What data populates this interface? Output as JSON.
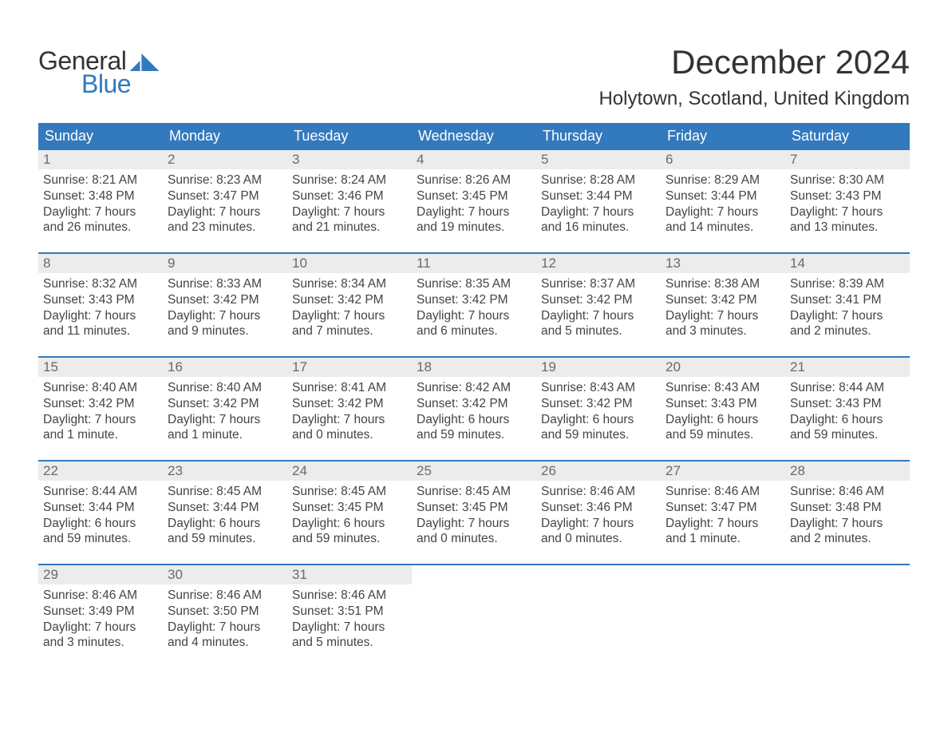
{
  "logo": {
    "text1": "General",
    "text2": "Blue",
    "color1": "#333333",
    "color2": "#3379bd",
    "flag_color": "#3379bd"
  },
  "title": "December 2024",
  "location": "Holytown, Scotland, United Kingdom",
  "styling": {
    "header_bg": "#3379bd",
    "header_text": "#ffffff",
    "daynum_bg": "#ececec",
    "daynum_color": "#6a6a6a",
    "body_text": "#444444",
    "week_border": "#3379bd",
    "page_bg": "#ffffff",
    "title_fontsize": 42,
    "location_fontsize": 24,
    "dow_fontsize": 18,
    "body_fontsize": 15.5
  },
  "days_of_week": [
    "Sunday",
    "Monday",
    "Tuesday",
    "Wednesday",
    "Thursday",
    "Friday",
    "Saturday"
  ],
  "weeks": [
    [
      {
        "n": "1",
        "sunrise": "Sunrise: 8:21 AM",
        "sunset": "Sunset: 3:48 PM",
        "d1": "Daylight: 7 hours",
        "d2": "and 26 minutes."
      },
      {
        "n": "2",
        "sunrise": "Sunrise: 8:23 AM",
        "sunset": "Sunset: 3:47 PM",
        "d1": "Daylight: 7 hours",
        "d2": "and 23 minutes."
      },
      {
        "n": "3",
        "sunrise": "Sunrise: 8:24 AM",
        "sunset": "Sunset: 3:46 PM",
        "d1": "Daylight: 7 hours",
        "d2": "and 21 minutes."
      },
      {
        "n": "4",
        "sunrise": "Sunrise: 8:26 AM",
        "sunset": "Sunset: 3:45 PM",
        "d1": "Daylight: 7 hours",
        "d2": "and 19 minutes."
      },
      {
        "n": "5",
        "sunrise": "Sunrise: 8:28 AM",
        "sunset": "Sunset: 3:44 PM",
        "d1": "Daylight: 7 hours",
        "d2": "and 16 minutes."
      },
      {
        "n": "6",
        "sunrise": "Sunrise: 8:29 AM",
        "sunset": "Sunset: 3:44 PM",
        "d1": "Daylight: 7 hours",
        "d2": "and 14 minutes."
      },
      {
        "n": "7",
        "sunrise": "Sunrise: 8:30 AM",
        "sunset": "Sunset: 3:43 PM",
        "d1": "Daylight: 7 hours",
        "d2": "and 13 minutes."
      }
    ],
    [
      {
        "n": "8",
        "sunrise": "Sunrise: 8:32 AM",
        "sunset": "Sunset: 3:43 PM",
        "d1": "Daylight: 7 hours",
        "d2": "and 11 minutes."
      },
      {
        "n": "9",
        "sunrise": "Sunrise: 8:33 AM",
        "sunset": "Sunset: 3:42 PM",
        "d1": "Daylight: 7 hours",
        "d2": "and 9 minutes."
      },
      {
        "n": "10",
        "sunrise": "Sunrise: 8:34 AM",
        "sunset": "Sunset: 3:42 PM",
        "d1": "Daylight: 7 hours",
        "d2": "and 7 minutes."
      },
      {
        "n": "11",
        "sunrise": "Sunrise: 8:35 AM",
        "sunset": "Sunset: 3:42 PM",
        "d1": "Daylight: 7 hours",
        "d2": "and 6 minutes."
      },
      {
        "n": "12",
        "sunrise": "Sunrise: 8:37 AM",
        "sunset": "Sunset: 3:42 PM",
        "d1": "Daylight: 7 hours",
        "d2": "and 5 minutes."
      },
      {
        "n": "13",
        "sunrise": "Sunrise: 8:38 AM",
        "sunset": "Sunset: 3:42 PM",
        "d1": "Daylight: 7 hours",
        "d2": "and 3 minutes."
      },
      {
        "n": "14",
        "sunrise": "Sunrise: 8:39 AM",
        "sunset": "Sunset: 3:41 PM",
        "d1": "Daylight: 7 hours",
        "d2": "and 2 minutes."
      }
    ],
    [
      {
        "n": "15",
        "sunrise": "Sunrise: 8:40 AM",
        "sunset": "Sunset: 3:42 PM",
        "d1": "Daylight: 7 hours",
        "d2": "and 1 minute."
      },
      {
        "n": "16",
        "sunrise": "Sunrise: 8:40 AM",
        "sunset": "Sunset: 3:42 PM",
        "d1": "Daylight: 7 hours",
        "d2": "and 1 minute."
      },
      {
        "n": "17",
        "sunrise": "Sunrise: 8:41 AM",
        "sunset": "Sunset: 3:42 PM",
        "d1": "Daylight: 7 hours",
        "d2": "and 0 minutes."
      },
      {
        "n": "18",
        "sunrise": "Sunrise: 8:42 AM",
        "sunset": "Sunset: 3:42 PM",
        "d1": "Daylight: 6 hours",
        "d2": "and 59 minutes."
      },
      {
        "n": "19",
        "sunrise": "Sunrise: 8:43 AM",
        "sunset": "Sunset: 3:42 PM",
        "d1": "Daylight: 6 hours",
        "d2": "and 59 minutes."
      },
      {
        "n": "20",
        "sunrise": "Sunrise: 8:43 AM",
        "sunset": "Sunset: 3:43 PM",
        "d1": "Daylight: 6 hours",
        "d2": "and 59 minutes."
      },
      {
        "n": "21",
        "sunrise": "Sunrise: 8:44 AM",
        "sunset": "Sunset: 3:43 PM",
        "d1": "Daylight: 6 hours",
        "d2": "and 59 minutes."
      }
    ],
    [
      {
        "n": "22",
        "sunrise": "Sunrise: 8:44 AM",
        "sunset": "Sunset: 3:44 PM",
        "d1": "Daylight: 6 hours",
        "d2": "and 59 minutes."
      },
      {
        "n": "23",
        "sunrise": "Sunrise: 8:45 AM",
        "sunset": "Sunset: 3:44 PM",
        "d1": "Daylight: 6 hours",
        "d2": "and 59 minutes."
      },
      {
        "n": "24",
        "sunrise": "Sunrise: 8:45 AM",
        "sunset": "Sunset: 3:45 PM",
        "d1": "Daylight: 6 hours",
        "d2": "and 59 minutes."
      },
      {
        "n": "25",
        "sunrise": "Sunrise: 8:45 AM",
        "sunset": "Sunset: 3:45 PM",
        "d1": "Daylight: 7 hours",
        "d2": "and 0 minutes."
      },
      {
        "n": "26",
        "sunrise": "Sunrise: 8:46 AM",
        "sunset": "Sunset: 3:46 PM",
        "d1": "Daylight: 7 hours",
        "d2": "and 0 minutes."
      },
      {
        "n": "27",
        "sunrise": "Sunrise: 8:46 AM",
        "sunset": "Sunset: 3:47 PM",
        "d1": "Daylight: 7 hours",
        "d2": "and 1 minute."
      },
      {
        "n": "28",
        "sunrise": "Sunrise: 8:46 AM",
        "sunset": "Sunset: 3:48 PM",
        "d1": "Daylight: 7 hours",
        "d2": "and 2 minutes."
      }
    ],
    [
      {
        "n": "29",
        "sunrise": "Sunrise: 8:46 AM",
        "sunset": "Sunset: 3:49 PM",
        "d1": "Daylight: 7 hours",
        "d2": "and 3 minutes."
      },
      {
        "n": "30",
        "sunrise": "Sunrise: 8:46 AM",
        "sunset": "Sunset: 3:50 PM",
        "d1": "Daylight: 7 hours",
        "d2": "and 4 minutes."
      },
      {
        "n": "31",
        "sunrise": "Sunrise: 8:46 AM",
        "sunset": "Sunset: 3:51 PM",
        "d1": "Daylight: 7 hours",
        "d2": "and 5 minutes."
      },
      null,
      null,
      null,
      null
    ]
  ]
}
